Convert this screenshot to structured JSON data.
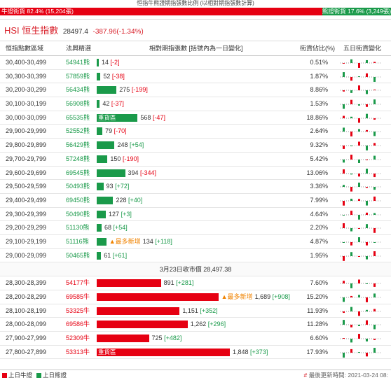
{
  "caption": "恒指牛熊證期指張數比例 (以相對期指張數計算)",
  "ratio": {
    "bull_label": "牛證街貨 82.4% (15,204張)",
    "bull_pct": 82.4,
    "bear_label": "熊證街貨 17.6% (3,249張)",
    "bear_pct": 17.6
  },
  "index": {
    "title": "HSI 恒生指數",
    "value": "28497.4",
    "change": "-387.96(-1.34%)"
  },
  "columns": {
    "range": "恒指點數區域",
    "count": "法興精選",
    "contracts": "相對期指張數 [括號內為一日變化]",
    "pct": "街貨佔比(%)",
    "trend": "五日街貨變化"
  },
  "colors": {
    "bull": "#e60012",
    "bear": "#1a9a4a",
    "tag": "#f08300"
  },
  "max_contracts": 1848,
  "bear_rows": [
    {
      "range": "30,400-30,499",
      "count": "54941熊",
      "contracts": 14,
      "contracts_text": "14",
      "change": "[-2]",
      "change_sign": "neg",
      "pct": "0.51%",
      "tag": ""
    },
    {
      "range": "30,300-30,399",
      "count": "57859熊",
      "contracts": 52,
      "contracts_text": "52",
      "change": "[-38]",
      "change_sign": "neg",
      "pct": "1.87%",
      "tag": ""
    },
    {
      "range": "30,200-30,299",
      "count": "56434熊",
      "contracts": 275,
      "contracts_text": "275",
      "change": "[-199]",
      "change_sign": "neg",
      "pct": "8.86%",
      "tag": ""
    },
    {
      "range": "30,100-30,199",
      "count": "56908熊",
      "contracts": 42,
      "contracts_text": "42",
      "change": "[-37]",
      "change_sign": "neg",
      "pct": "1.53%",
      "tag": ""
    },
    {
      "range": "30,000-30,099",
      "count": "65535熊",
      "contracts": 568,
      "contracts_text": "568",
      "change": "[-47]",
      "change_sign": "neg",
      "pct": "18.86%",
      "tag": "",
      "bar_label": "重貨區"
    },
    {
      "range": "29,900-29,999",
      "count": "52552熊",
      "contracts": 79,
      "contracts_text": "79",
      "change": "[-70]",
      "change_sign": "neg",
      "pct": "2.64%",
      "tag": ""
    },
    {
      "range": "29,800-29,899",
      "count": "56429熊",
      "contracts": 248,
      "contracts_text": "248",
      "change": "[+54]",
      "change_sign": "pos",
      "pct": "9.32%",
      "tag": ""
    },
    {
      "range": "29,700-29,799",
      "count": "57248熊",
      "contracts": 150,
      "contracts_text": "150",
      "change": "[-190]",
      "change_sign": "neg",
      "pct": "5.42%",
      "tag": ""
    },
    {
      "range": "29,600-29,699",
      "count": "69545熊",
      "contracts": 394,
      "contracts_text": "394",
      "change": "[-344]",
      "change_sign": "neg",
      "pct": "13.06%",
      "tag": ""
    },
    {
      "range": "29,500-29,599",
      "count": "50493熊",
      "contracts": 93,
      "contracts_text": "93",
      "change": "[+72]",
      "change_sign": "pos",
      "pct": "3.36%",
      "tag": ""
    },
    {
      "range": "29,400-29,499",
      "count": "69450熊",
      "contracts": 228,
      "contracts_text": "228",
      "change": "[+40]",
      "change_sign": "pos",
      "pct": "7.99%",
      "tag": ""
    },
    {
      "range": "29,300-29,399",
      "count": "50490熊",
      "contracts": 127,
      "contracts_text": "127",
      "change": "[+3]",
      "change_sign": "pos",
      "pct": "4.64%",
      "tag": ""
    },
    {
      "range": "29,200-29,299",
      "count": "51130熊",
      "contracts": 68,
      "contracts_text": "68",
      "change": "[+54]",
      "change_sign": "pos",
      "pct": "2.20%",
      "tag": ""
    },
    {
      "range": "29,100-29,199",
      "count": "51116熊",
      "contracts": 134,
      "contracts_text": "134",
      "change": "[+118]",
      "change_sign": "pos",
      "pct": "4.87%",
      "tag": "▲最多新增"
    },
    {
      "range": "29,000-29,099",
      "count": "50465熊",
      "contracts": 61,
      "contracts_text": "61",
      "change": "[+61]",
      "change_sign": "pos",
      "pct": "1.95%",
      "tag": ""
    }
  ],
  "divider": "3月23日收市價 28,497.38",
  "bull_rows": [
    {
      "range": "28,300-28,399",
      "count": "54177牛",
      "contracts": 891,
      "contracts_text": "891",
      "change": "[+281]",
      "change_sign": "pos",
      "pct": "7.60%",
      "tag": ""
    },
    {
      "range": "28,200-28,299",
      "count": "69585牛",
      "contracts": 1689,
      "contracts_text": "1,689",
      "change": "[+908]",
      "change_sign": "pos",
      "pct": "15.20%",
      "tag": "▲最多新增"
    },
    {
      "range": "28,100-28,199",
      "count": "53325牛",
      "contracts": 1151,
      "contracts_text": "1,151",
      "change": "[+352]",
      "change_sign": "pos",
      "pct": "11.93%",
      "tag": ""
    },
    {
      "range": "28,000-28,099",
      "count": "69586牛",
      "contracts": 1262,
      "contracts_text": "1,262",
      "change": "[+296]",
      "change_sign": "pos",
      "pct": "11.28%",
      "tag": ""
    },
    {
      "range": "27,900-27,999",
      "count": "52309牛",
      "contracts": 725,
      "contracts_text": "725",
      "change": "[+482]",
      "change_sign": "pos",
      "pct": "6.60%",
      "tag": ""
    },
    {
      "range": "27,800-27,899",
      "count": "53313牛",
      "contracts": 1848,
      "contracts_text": "1,848",
      "change": "[+373]",
      "change_sign": "pos",
      "pct": "17.93%",
      "tag": "",
      "bar_label": "重貨區"
    }
  ],
  "legend": {
    "bull": "上日牛證",
    "bear": "上日熊證",
    "updated_mark": "#",
    "updated": "最後更新時間: 2021-03-24 08:"
  }
}
